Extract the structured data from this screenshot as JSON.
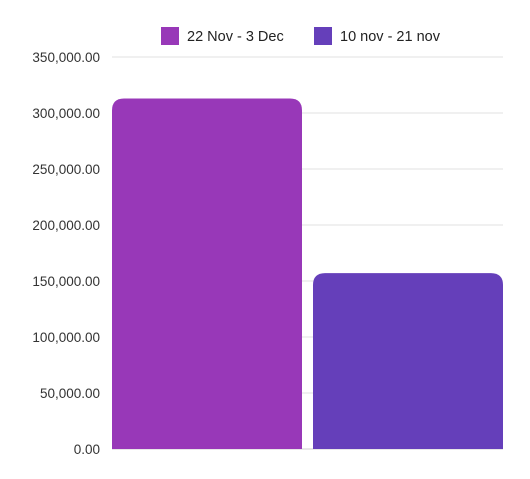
{
  "chart_data": {
    "type": "bar",
    "title": "",
    "xlabel": "",
    "ylabel": "",
    "categories": [
      ""
    ],
    "series": [
      {
        "name": "22 Nov - 3 Dec",
        "values": [
          313000
        ],
        "color": "#9838b8"
      },
      {
        "name": "10 nov - 21 nov",
        "values": [
          157000
        ],
        "color": "#653fba"
      }
    ],
    "ylim": [
      0,
      350000
    ],
    "yticks": [
      0,
      50000,
      100000,
      150000,
      200000,
      250000,
      300000,
      350000
    ],
    "ytick_labels": [
      "0.00",
      "50,000.00",
      "100,000.00",
      "150,000.00",
      "200,000.00",
      "250,000.00",
      "300,000.00",
      "350,000.00"
    ],
    "grid": true,
    "legend": "top"
  }
}
